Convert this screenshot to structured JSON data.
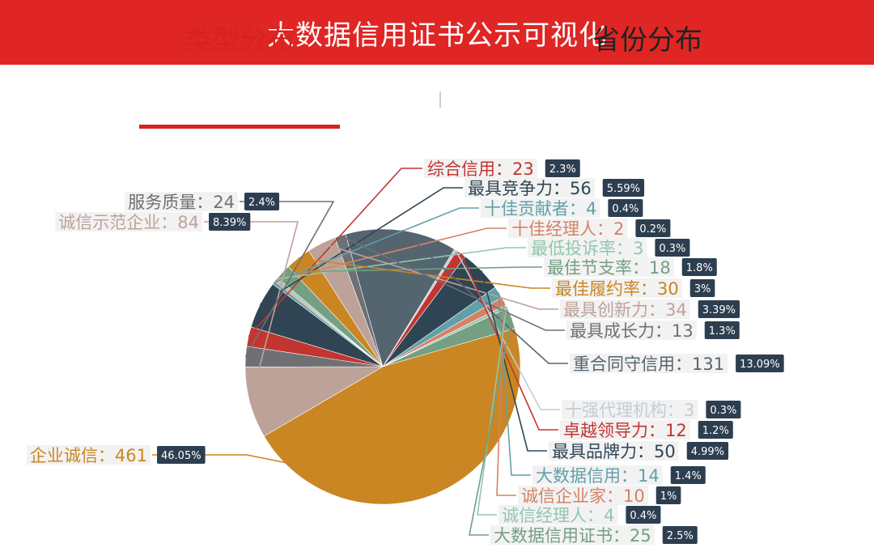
{
  "header": {
    "title": "大数据信用证书公示可视化"
  },
  "tabs": [
    {
      "label": "类型分布",
      "active": true
    },
    {
      "label": "省份分布",
      "active": false
    }
  ],
  "chart_data": {
    "type": "pie",
    "start_label": "综合信用",
    "slices": [
      {
        "name": "综合信用",
        "value": 23,
        "percent": "2.3%",
        "color": "#c23531"
      },
      {
        "name": "最具竞争力",
        "value": 56,
        "percent": "5.59%",
        "color": "#2f4554"
      },
      {
        "name": "十佳贡献者",
        "value": 4,
        "percent": "0.4%",
        "color": "#61a0a8"
      },
      {
        "name": "十佳经理人",
        "value": 2,
        "percent": "0.2%",
        "color": "#d48265"
      },
      {
        "name": "最低投诉率",
        "value": 3,
        "percent": "0.3%",
        "color": "#91c7ae"
      },
      {
        "name": "最佳节支率",
        "value": 18,
        "percent": "1.8%",
        "color": "#749f83"
      },
      {
        "name": "最佳履约率",
        "value": 30,
        "percent": "3%",
        "color": "#ca8622"
      },
      {
        "name": "最具创新力",
        "value": 34,
        "percent": "3.39%",
        "color": "#bda29a"
      },
      {
        "name": "最具成长力",
        "value": 13,
        "percent": "1.3%",
        "color": "#6e7074"
      },
      {
        "name": "重合同守信用",
        "value": 131,
        "percent": "13.09%",
        "color": "#546570"
      },
      {
        "name": "十强代理机构",
        "value": 3,
        "percent": "0.3%",
        "color": "#c4ccd3"
      },
      {
        "name": "卓越领导力",
        "value": 12,
        "percent": "1.2%",
        "color": "#c23531"
      },
      {
        "name": "最具品牌力",
        "value": 50,
        "percent": "4.99%",
        "color": "#2f4554"
      },
      {
        "name": "大数据信用",
        "value": 14,
        "percent": "1.4%",
        "color": "#61a0a8"
      },
      {
        "name": "诚信企业家",
        "value": 10,
        "percent": "1%",
        "color": "#d48265"
      },
      {
        "name": "诚信经理人",
        "value": 4,
        "percent": "0.4%",
        "color": "#91c7ae"
      },
      {
        "name": "大数据信用证书",
        "value": 25,
        "percent": "2.5%",
        "color": "#749f83"
      },
      {
        "name": "企业诚信",
        "value": 461,
        "percent": "46.05%",
        "color": "#ca8622"
      },
      {
        "name": "诚信示范企业",
        "value": 84,
        "percent": "8.39%",
        "color": "#bda29a"
      },
      {
        "name": "服务质量",
        "value": 24,
        "percent": "2.4%",
        "color": "#6e7074"
      }
    ]
  },
  "colors": {
    "header": "#e02624",
    "active_tab": "#d6221f",
    "badge": "#2d3e50"
  }
}
